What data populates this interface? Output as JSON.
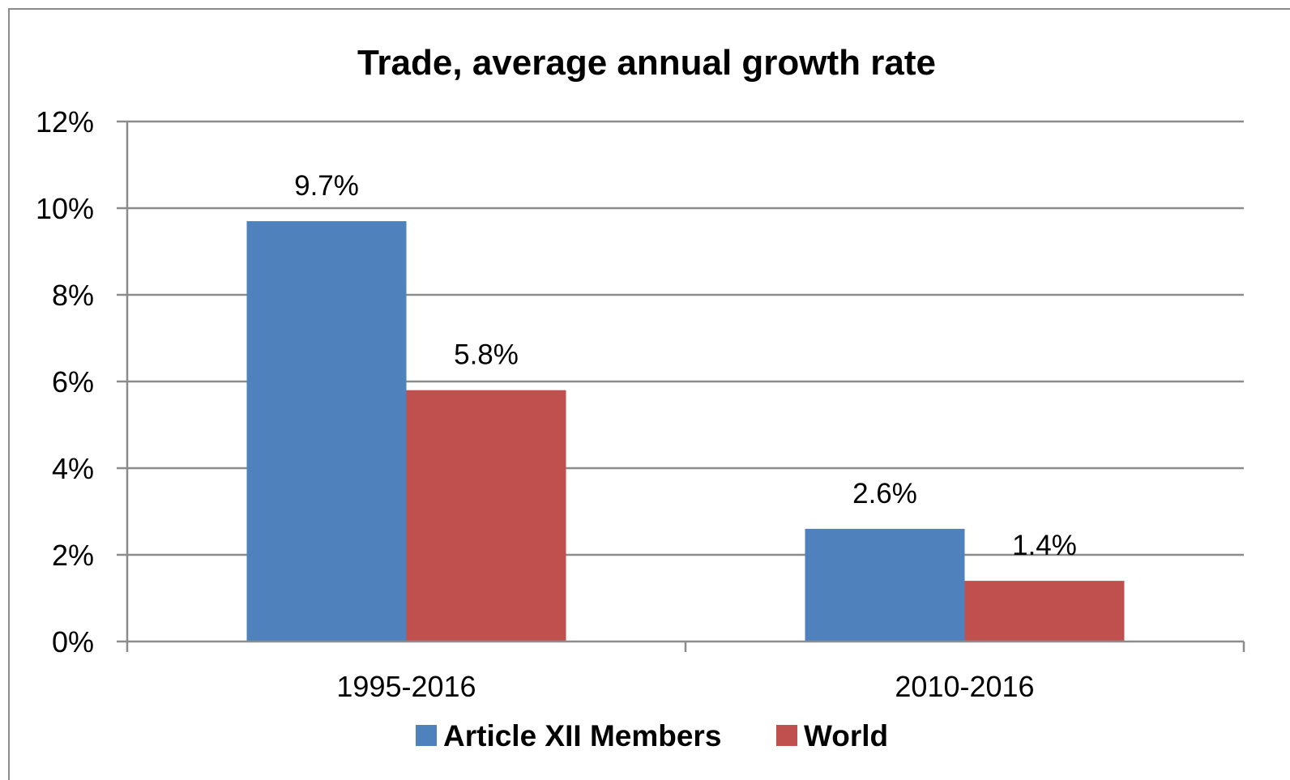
{
  "chart_data": {
    "type": "bar",
    "title": "Trade, average annual growth rate",
    "xlabel": "",
    "ylabel": "",
    "categories": [
      "1995-2016",
      "2010-2016"
    ],
    "series": [
      {
        "name": "Article XII Members",
        "values": [
          9.7,
          2.6
        ],
        "color": "#4f81bd"
      },
      {
        "name": "World",
        "values": [
          5.8,
          1.4
        ],
        "color": "#c0504d"
      }
    ],
    "data_labels": [
      [
        "9.7%",
        "2.6%"
      ],
      [
        "5.8%",
        "1.4%"
      ]
    ],
    "y_ticks": [
      "0%",
      "2%",
      "4%",
      "6%",
      "8%",
      "10%",
      "12%"
    ],
    "ylim": [
      0,
      12
    ],
    "grid": true,
    "legend_position": "bottom"
  },
  "colors": {
    "gridline": "#8c8c8c",
    "axis": "#8c8c8c"
  }
}
